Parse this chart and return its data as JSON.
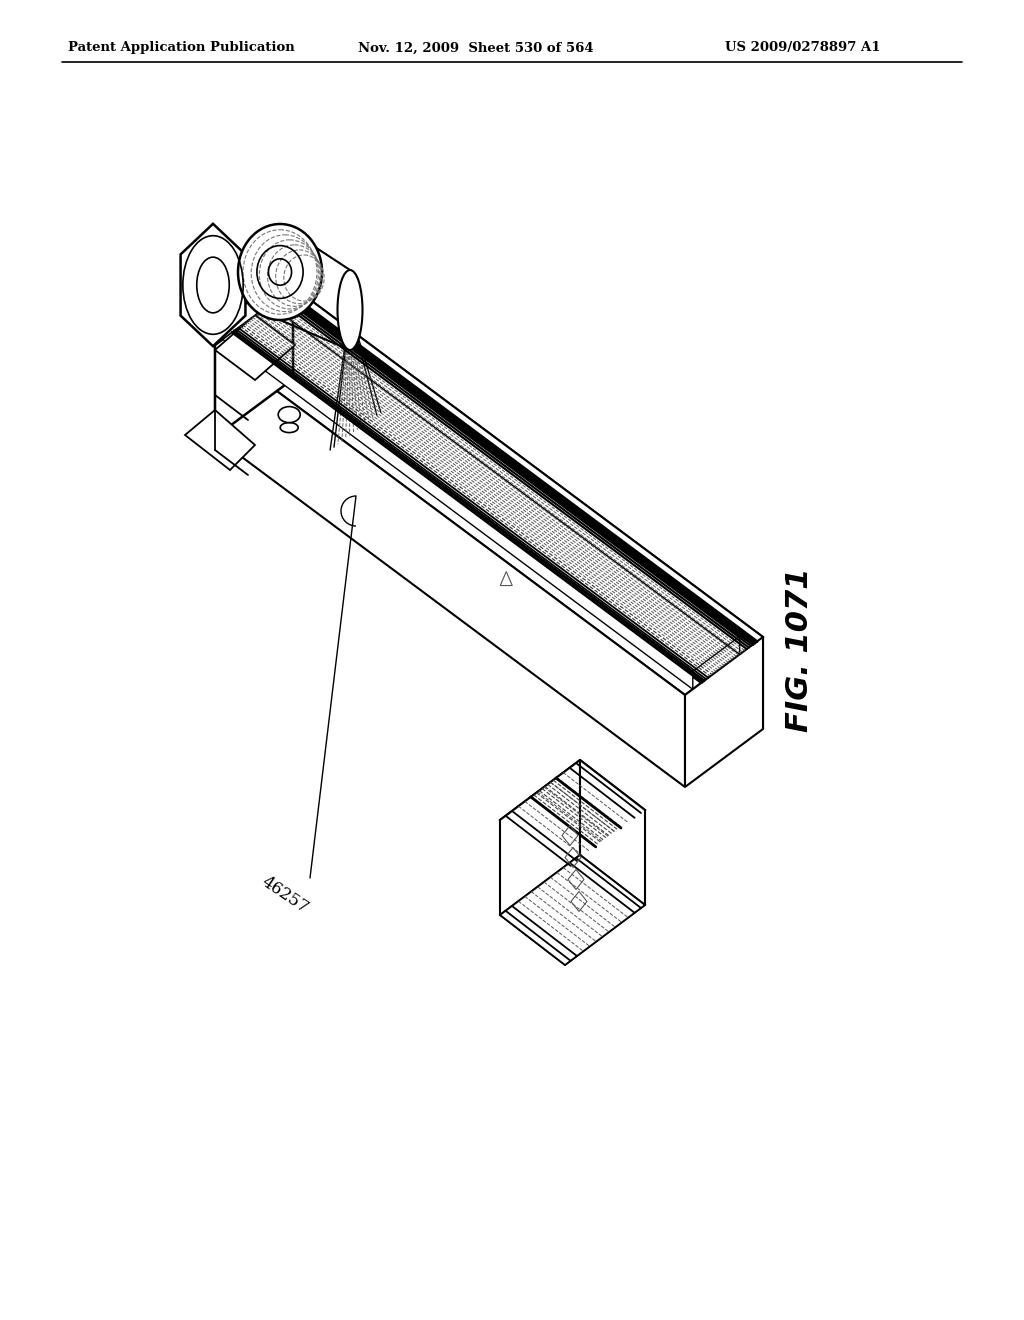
{
  "header_left": "Patent Application Publication",
  "header_mid": "Nov. 12, 2009  Sheet 530 of 564",
  "header_right": "US 2009/0278897 A1",
  "fig_label": "FIG. 1071",
  "part_label": "46257",
  "bg_color": "#ffffff",
  "line_color": "#000000",
  "fig_w": 10.24,
  "fig_h": 13.2,
  "dpi": 100
}
